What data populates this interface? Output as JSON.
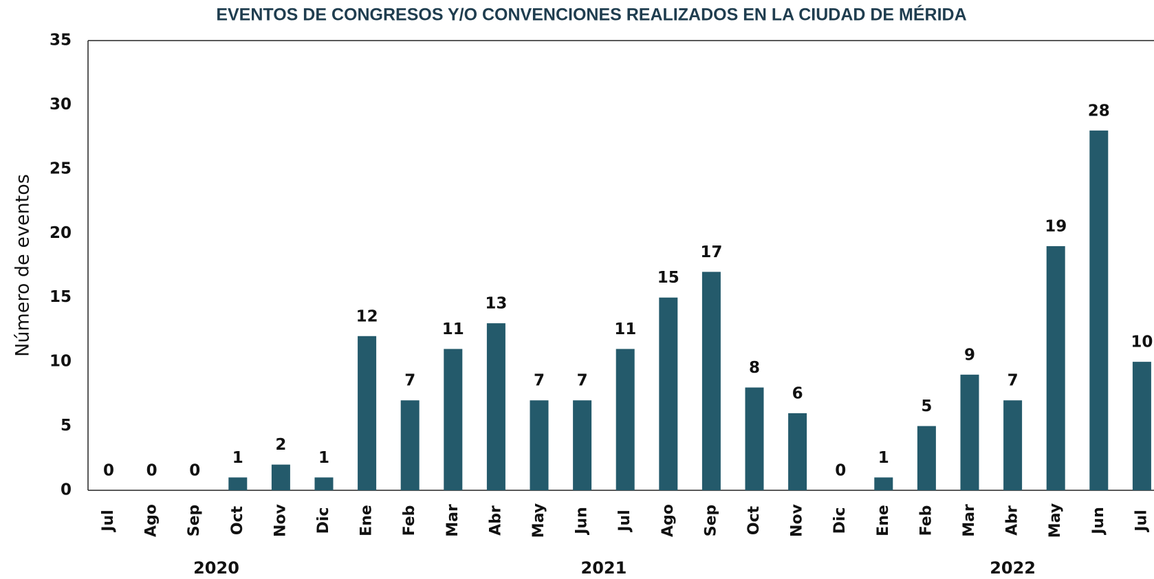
{
  "chart_data": {
    "type": "bar",
    "title": "EVENTOS DE CONGRESOS Y/O CONVENCIONES REALIZADOS EN LA CIUDAD DE MÉRIDA",
    "y_label": "Número de eventos",
    "groups": [
      {
        "name": "2020",
        "categories": [
          "Jul",
          "Ago",
          "Sep",
          "Oct",
          "Nov",
          "Dic"
        ]
      },
      {
        "name": "2021",
        "categories": [
          "Ene",
          "Feb",
          "Mar",
          "Abr",
          "May",
          "Jun",
          "Jul",
          "Ago",
          "Sep",
          "Oct",
          "Nov",
          "Dic"
        ]
      },
      {
        "name": "2022",
        "categories": [
          "Ene",
          "Feb",
          "Mar",
          "Abr",
          "May",
          "Jun",
          "Jul"
        ]
      }
    ],
    "values": [
      0,
      0,
      0,
      1,
      2,
      1,
      12,
      7,
      11,
      13,
      7,
      7,
      11,
      15,
      17,
      8,
      6,
      0,
      1,
      5,
      9,
      7,
      19,
      28,
      10
    ],
    "color": "#245a6b",
    "ylim": [
      0,
      35
    ],
    "yticks": [
      0,
      5,
      10,
      15,
      20,
      25,
      30,
      35
    ],
    "grid": false
  }
}
